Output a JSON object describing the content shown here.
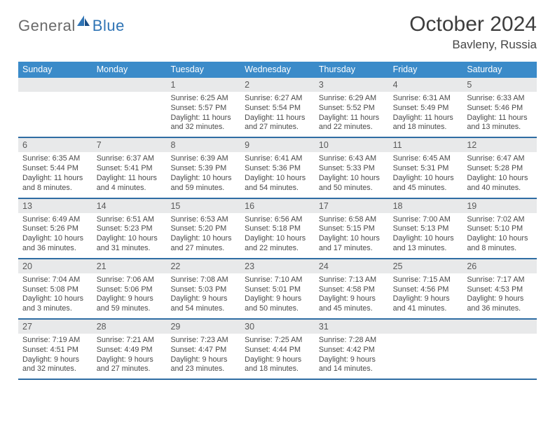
{
  "brand": {
    "general": "General",
    "blue": "Blue"
  },
  "title": "October 2024",
  "location": "Bavleny, Russia",
  "colors": {
    "header_bg": "#3b8bc9",
    "header_text": "#ffffff",
    "divider": "#2f6da3",
    "daynum_bg": "#e8e9ea",
    "body_text": "#4a4a4a",
    "title_text": "#3d3d3d",
    "logo_gray": "#6a6a6a",
    "logo_blue": "#2f74b5",
    "page_bg": "#ffffff"
  },
  "day_headers": [
    "Sunday",
    "Monday",
    "Tuesday",
    "Wednesday",
    "Thursday",
    "Friday",
    "Saturday"
  ],
  "weeks": [
    [
      {
        "n": "",
        "sr": "",
        "ss": "",
        "dl": ""
      },
      {
        "n": "",
        "sr": "",
        "ss": "",
        "dl": ""
      },
      {
        "n": "1",
        "sr": "Sunrise: 6:25 AM",
        "ss": "Sunset: 5:57 PM",
        "dl": "Daylight: 11 hours and 32 minutes."
      },
      {
        "n": "2",
        "sr": "Sunrise: 6:27 AM",
        "ss": "Sunset: 5:54 PM",
        "dl": "Daylight: 11 hours and 27 minutes."
      },
      {
        "n": "3",
        "sr": "Sunrise: 6:29 AM",
        "ss": "Sunset: 5:52 PM",
        "dl": "Daylight: 11 hours and 22 minutes."
      },
      {
        "n": "4",
        "sr": "Sunrise: 6:31 AM",
        "ss": "Sunset: 5:49 PM",
        "dl": "Daylight: 11 hours and 18 minutes."
      },
      {
        "n": "5",
        "sr": "Sunrise: 6:33 AM",
        "ss": "Sunset: 5:46 PM",
        "dl": "Daylight: 11 hours and 13 minutes."
      }
    ],
    [
      {
        "n": "6",
        "sr": "Sunrise: 6:35 AM",
        "ss": "Sunset: 5:44 PM",
        "dl": "Daylight: 11 hours and 8 minutes."
      },
      {
        "n": "7",
        "sr": "Sunrise: 6:37 AM",
        "ss": "Sunset: 5:41 PM",
        "dl": "Daylight: 11 hours and 4 minutes."
      },
      {
        "n": "8",
        "sr": "Sunrise: 6:39 AM",
        "ss": "Sunset: 5:39 PM",
        "dl": "Daylight: 10 hours and 59 minutes."
      },
      {
        "n": "9",
        "sr": "Sunrise: 6:41 AM",
        "ss": "Sunset: 5:36 PM",
        "dl": "Daylight: 10 hours and 54 minutes."
      },
      {
        "n": "10",
        "sr": "Sunrise: 6:43 AM",
        "ss": "Sunset: 5:33 PM",
        "dl": "Daylight: 10 hours and 50 minutes."
      },
      {
        "n": "11",
        "sr": "Sunrise: 6:45 AM",
        "ss": "Sunset: 5:31 PM",
        "dl": "Daylight: 10 hours and 45 minutes."
      },
      {
        "n": "12",
        "sr": "Sunrise: 6:47 AM",
        "ss": "Sunset: 5:28 PM",
        "dl": "Daylight: 10 hours and 40 minutes."
      }
    ],
    [
      {
        "n": "13",
        "sr": "Sunrise: 6:49 AM",
        "ss": "Sunset: 5:26 PM",
        "dl": "Daylight: 10 hours and 36 minutes."
      },
      {
        "n": "14",
        "sr": "Sunrise: 6:51 AM",
        "ss": "Sunset: 5:23 PM",
        "dl": "Daylight: 10 hours and 31 minutes."
      },
      {
        "n": "15",
        "sr": "Sunrise: 6:53 AM",
        "ss": "Sunset: 5:20 PM",
        "dl": "Daylight: 10 hours and 27 minutes."
      },
      {
        "n": "16",
        "sr": "Sunrise: 6:56 AM",
        "ss": "Sunset: 5:18 PM",
        "dl": "Daylight: 10 hours and 22 minutes."
      },
      {
        "n": "17",
        "sr": "Sunrise: 6:58 AM",
        "ss": "Sunset: 5:15 PM",
        "dl": "Daylight: 10 hours and 17 minutes."
      },
      {
        "n": "18",
        "sr": "Sunrise: 7:00 AM",
        "ss": "Sunset: 5:13 PM",
        "dl": "Daylight: 10 hours and 13 minutes."
      },
      {
        "n": "19",
        "sr": "Sunrise: 7:02 AM",
        "ss": "Sunset: 5:10 PM",
        "dl": "Daylight: 10 hours and 8 minutes."
      }
    ],
    [
      {
        "n": "20",
        "sr": "Sunrise: 7:04 AM",
        "ss": "Sunset: 5:08 PM",
        "dl": "Daylight: 10 hours and 3 minutes."
      },
      {
        "n": "21",
        "sr": "Sunrise: 7:06 AM",
        "ss": "Sunset: 5:06 PM",
        "dl": "Daylight: 9 hours and 59 minutes."
      },
      {
        "n": "22",
        "sr": "Sunrise: 7:08 AM",
        "ss": "Sunset: 5:03 PM",
        "dl": "Daylight: 9 hours and 54 minutes."
      },
      {
        "n": "23",
        "sr": "Sunrise: 7:10 AM",
        "ss": "Sunset: 5:01 PM",
        "dl": "Daylight: 9 hours and 50 minutes."
      },
      {
        "n": "24",
        "sr": "Sunrise: 7:13 AM",
        "ss": "Sunset: 4:58 PM",
        "dl": "Daylight: 9 hours and 45 minutes."
      },
      {
        "n": "25",
        "sr": "Sunrise: 7:15 AM",
        "ss": "Sunset: 4:56 PM",
        "dl": "Daylight: 9 hours and 41 minutes."
      },
      {
        "n": "26",
        "sr": "Sunrise: 7:17 AM",
        "ss": "Sunset: 4:53 PM",
        "dl": "Daylight: 9 hours and 36 minutes."
      }
    ],
    [
      {
        "n": "27",
        "sr": "Sunrise: 7:19 AM",
        "ss": "Sunset: 4:51 PM",
        "dl": "Daylight: 9 hours and 32 minutes."
      },
      {
        "n": "28",
        "sr": "Sunrise: 7:21 AM",
        "ss": "Sunset: 4:49 PM",
        "dl": "Daylight: 9 hours and 27 minutes."
      },
      {
        "n": "29",
        "sr": "Sunrise: 7:23 AM",
        "ss": "Sunset: 4:47 PM",
        "dl": "Daylight: 9 hours and 23 minutes."
      },
      {
        "n": "30",
        "sr": "Sunrise: 7:25 AM",
        "ss": "Sunset: 4:44 PM",
        "dl": "Daylight: 9 hours and 18 minutes."
      },
      {
        "n": "31",
        "sr": "Sunrise: 7:28 AM",
        "ss": "Sunset: 4:42 PM",
        "dl": "Daylight: 9 hours and 14 minutes."
      },
      {
        "n": "",
        "sr": "",
        "ss": "",
        "dl": ""
      },
      {
        "n": "",
        "sr": "",
        "ss": "",
        "dl": ""
      }
    ]
  ]
}
